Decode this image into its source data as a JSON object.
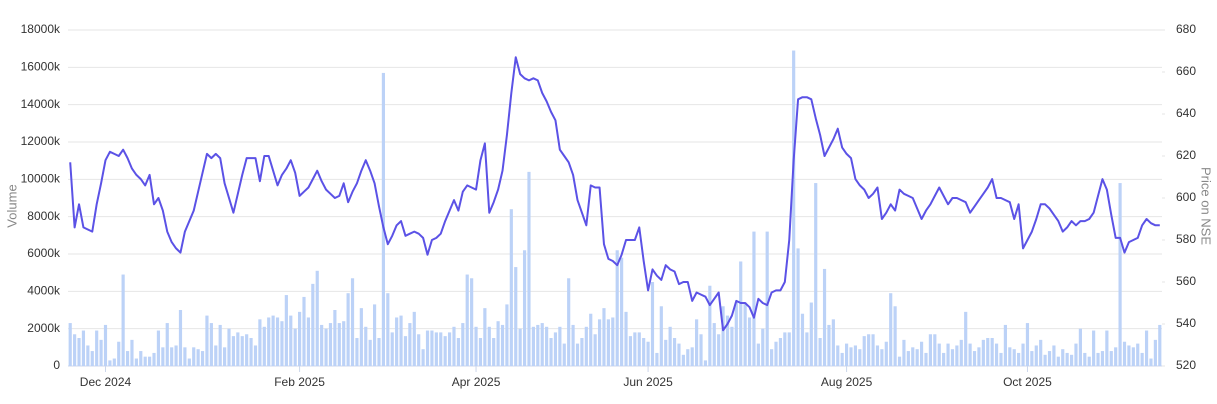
{
  "chart_data": {
    "type": "combo",
    "y_label": "Volume",
    "y2_label": "Price on NSE",
    "ylim": [
      0,
      18000
    ],
    "yticks": [
      0,
      {
        "value": 2000,
        "label": "2000k"
      },
      {
        "value": 4000,
        "label": "4000k"
      },
      {
        "value": 6000,
        "label": "6000k"
      },
      {
        "value": 8000,
        "label": "8000k"
      },
      {
        "value": 10000,
        "label": "10000k"
      },
      {
        "value": 12000,
        "label": "12000k"
      },
      {
        "value": 14000,
        "label": "14000k"
      },
      {
        "value": 16000,
        "label": "16000k"
      },
      {
        "value": 18000,
        "label": "18000k"
      }
    ],
    "y2lim": [
      520,
      680
    ],
    "y2ticks": [
      520,
      540,
      560,
      580,
      600,
      620,
      640,
      660,
      680
    ],
    "grid": true,
    "categories": [
      null,
      null,
      null,
      null,
      null,
      null,
      null,
      null,
      "Dec 2024",
      null,
      null,
      null,
      null,
      null,
      null,
      null,
      null,
      null,
      null,
      null,
      null,
      null,
      null,
      null,
      null,
      null,
      null,
      null,
      null,
      null,
      null,
      null,
      null,
      null,
      null,
      null,
      null,
      null,
      null,
      null,
      null,
      null,
      null,
      null,
      null,
      null,
      null,
      null,
      null,
      null,
      null,
      null,
      "Feb 2025",
      null,
      null,
      null,
      null,
      null,
      null,
      null,
      null,
      null,
      null,
      null,
      null,
      null,
      null,
      null,
      null,
      null,
      null,
      null,
      null,
      null,
      null,
      null,
      null,
      null,
      null,
      null,
      null,
      null,
      null,
      null,
      null,
      null,
      null,
      null,
      null,
      null,
      null,
      null,
      "Apr 2025",
      null,
      null,
      null,
      null,
      null,
      null,
      null,
      null,
      null,
      null,
      null,
      null,
      null,
      null,
      null,
      null,
      null,
      null,
      null,
      null,
      null,
      null,
      null,
      null,
      null,
      null,
      null,
      null,
      null,
      null,
      null,
      null,
      null,
      null,
      null,
      null,
      null,
      null,
      "Jun 2025",
      null,
      null,
      null,
      null,
      null,
      null,
      null,
      null,
      null,
      null,
      null,
      null,
      null,
      null,
      null,
      null,
      null,
      null,
      null,
      null,
      null,
      null,
      null,
      null,
      null,
      null,
      null,
      null,
      null,
      null,
      null,
      null,
      null,
      null,
      null,
      null,
      null,
      null,
      null,
      null,
      null,
      null,
      null,
      null,
      "Aug 2025",
      null,
      null,
      null,
      null,
      null,
      null,
      null,
      null,
      null,
      null,
      null,
      null,
      null,
      null,
      null,
      null,
      null,
      null,
      null,
      null,
      null,
      null,
      null,
      null,
      null,
      null,
      null,
      null,
      null,
      null,
      null,
      null,
      null,
      null,
      null,
      null,
      null,
      null,
      null,
      null,
      "Oct 2025",
      null,
      null,
      null,
      null,
      null,
      null,
      null,
      null,
      null,
      null,
      null,
      null,
      null,
      null,
      null,
      null,
      null,
      null,
      null,
      null,
      null,
      null,
      null,
      null,
      null,
      null,
      null,
      null,
      null,
      null
    ],
    "series": [
      {
        "type": "bar",
        "axis": "y",
        "color": "#bcd2f7",
        "values": [
          2300,
          1700,
          1500,
          1900,
          1100,
          800,
          1900,
          1400,
          2200,
          300,
          400,
          1300,
          4900,
          800,
          1400,
          400,
          800,
          500,
          500,
          700,
          1900,
          1000,
          2300,
          1000,
          1100,
          3000,
          1000,
          400,
          1000,
          900,
          800,
          2700,
          2300,
          1100,
          2200,
          1000,
          2000,
          1600,
          1800,
          1600,
          1700,
          1500,
          1100,
          2500,
          2100,
          2600,
          2700,
          2600,
          2400,
          3800,
          2700,
          2000,
          2900,
          3700,
          2600,
          4400,
          5100,
          2200,
          2000,
          2300,
          3000,
          2300,
          2400,
          3900,
          4700,
          1500,
          3100,
          2100,
          1400,
          3300,
          1500,
          15700,
          3900,
          1800,
          2600,
          2700,
          1600,
          2300,
          2900,
          1700,
          900,
          1900,
          1900,
          1800,
          1800,
          1600,
          1800,
          2100,
          1500,
          2300,
          4900,
          4700,
          2100,
          1500,
          3100,
          2100,
          1500,
          2400,
          2200,
          3300,
          8400,
          5300,
          2000,
          6200,
          10400,
          2100,
          2200,
          2300,
          2100,
          1500,
          1800,
          2100,
          1200,
          4700,
          2200,
          1200,
          1500,
          2100,
          2800,
          1700,
          2500,
          3100,
          2500,
          2600,
          6200,
          5800,
          2900,
          1600,
          1800,
          1800,
          1500,
          1300,
          4500,
          700,
          3200,
          1400,
          2100,
          1500,
          1200,
          600,
          900,
          1000,
          2500,
          1700,
          300,
          4300,
          2300,
          1700,
          3200,
          2700,
          2100,
          3400,
          5600,
          3400,
          2600,
          7200,
          1200,
          2000,
          7200,
          900,
          1300,
          1500,
          1800,
          1800,
          16900,
          6300,
          2800,
          1800,
          3400,
          9800,
          1500,
          5200,
          2200,
          2500,
          1100,
          700,
          1200,
          1000,
          1100,
          900,
          1600,
          1700,
          1700,
          1100,
          900,
          1300,
          3900,
          3200,
          500,
          1400,
          800,
          1000,
          900,
          1300,
          700,
          1700,
          1700,
          1200,
          700,
          1200,
          900,
          1100,
          1400,
          2900,
          1200,
          800,
          1000,
          1400,
          1500,
          1500,
          1200,
          700,
          2200,
          1000,
          900,
          700,
          1200,
          2300,
          800,
          1100,
          1400,
          600,
          800,
          1100,
          500,
          900,
          700,
          600,
          1200,
          2000,
          700,
          500,
          1900,
          700,
          800,
          1900,
          800,
          1000,
          9800,
          1300,
          1100,
          1000,
          1200,
          700,
          1900,
          400,
          1400,
          2200
        ]
      },
      {
        "type": "line",
        "axis": "y2",
        "color": "#5b52e6",
        "values": [
          617,
          586,
          597,
          586,
          585,
          584,
          597,
          607,
          618,
          622,
          621,
          620,
          623,
          619,
          614,
          611,
          609,
          606,
          611,
          597,
          600,
          594,
          584,
          579,
          576,
          574,
          584,
          589,
          594,
          603,
          612,
          621,
          619,
          621,
          619,
          607,
          600,
          593,
          602,
          611,
          619,
          619,
          619,
          608,
          620,
          620,
          613,
          606,
          611,
          614,
          618,
          612,
          601,
          603,
          605,
          609,
          613,
          608,
          604,
          602,
          600,
          601,
          607,
          598,
          603,
          607,
          613,
          618,
          613,
          607,
          596,
          586,
          578,
          582,
          587,
          589,
          582,
          583,
          584,
          583,
          581,
          573,
          580,
          581,
          583,
          589,
          594,
          599,
          594,
          603,
          606,
          605,
          604,
          618,
          626,
          593,
          598,
          604,
          613,
          630,
          650,
          667,
          659,
          657,
          656,
          657,
          656,
          650,
          646,
          641,
          637,
          623,
          620,
          617,
          611,
          599,
          593,
          587,
          606,
          605,
          605,
          578,
          571,
          570,
          568,
          573,
          580,
          580,
          580,
          586,
          570,
          556,
          566,
          563,
          561,
          568,
          566,
          565,
          559,
          560,
          560,
          551,
          555,
          554,
          553,
          549,
          552,
          555,
          537,
          540,
          544,
          551,
          550,
          550,
          548,
          543,
          552,
          550,
          549,
          555,
          556,
          556,
          560,
          580,
          618,
          647,
          648,
          648,
          647,
          638,
          630,
          620,
          624,
          628,
          633,
          624,
          621,
          619,
          609,
          606,
          604,
          600,
          602,
          605,
          590,
          593,
          597,
          594,
          604,
          602,
          601,
          600,
          595,
          590,
          594,
          597,
          601,
          605,
          601,
          597,
          600,
          600,
          599,
          598,
          593,
          596,
          599,
          602,
          605,
          609,
          600,
          600,
          599,
          598,
          590,
          597,
          576,
          580,
          584,
          590,
          597,
          597,
          595,
          592,
          589,
          584,
          586,
          589,
          587,
          589,
          589,
          590,
          593,
          601,
          609,
          604,
          592,
          581,
          581,
          574,
          579,
          580,
          581,
          587,
          590,
          588,
          587,
          587
        ]
      }
    ]
  }
}
